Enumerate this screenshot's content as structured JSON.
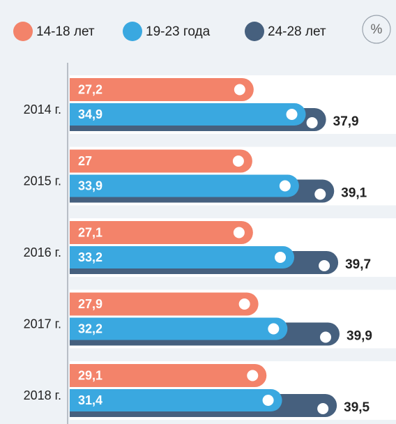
{
  "chart_data": {
    "type": "bar",
    "orientation": "horizontal",
    "unit_label": "%",
    "categories": [
      "2014 г.",
      "2015 г.",
      "2016 г.",
      "2017 г.",
      "2018 г."
    ],
    "series": [
      {
        "name": "14-18 лет",
        "color": "#f3836a",
        "values": [
          27.2,
          27,
          27.1,
          27.9,
          29.1
        ],
        "value_labels": [
          "27,2",
          "27",
          "27,1",
          "27,9",
          "29,1"
        ]
      },
      {
        "name": "19-23 года",
        "color": "#3aa8e0",
        "values": [
          34.9,
          33.9,
          33.2,
          32.2,
          31.4
        ],
        "value_labels": [
          "34,9",
          "33,9",
          "33,2",
          "32,2",
          "31,4"
        ]
      },
      {
        "name": "24-28 лет",
        "color": "#46607e",
        "values": [
          37.9,
          39.1,
          39.7,
          39.9,
          39.5
        ],
        "value_labels": [
          "37,9",
          "39,1",
          "39,7",
          "39,9",
          "39,5"
        ]
      }
    ]
  }
}
